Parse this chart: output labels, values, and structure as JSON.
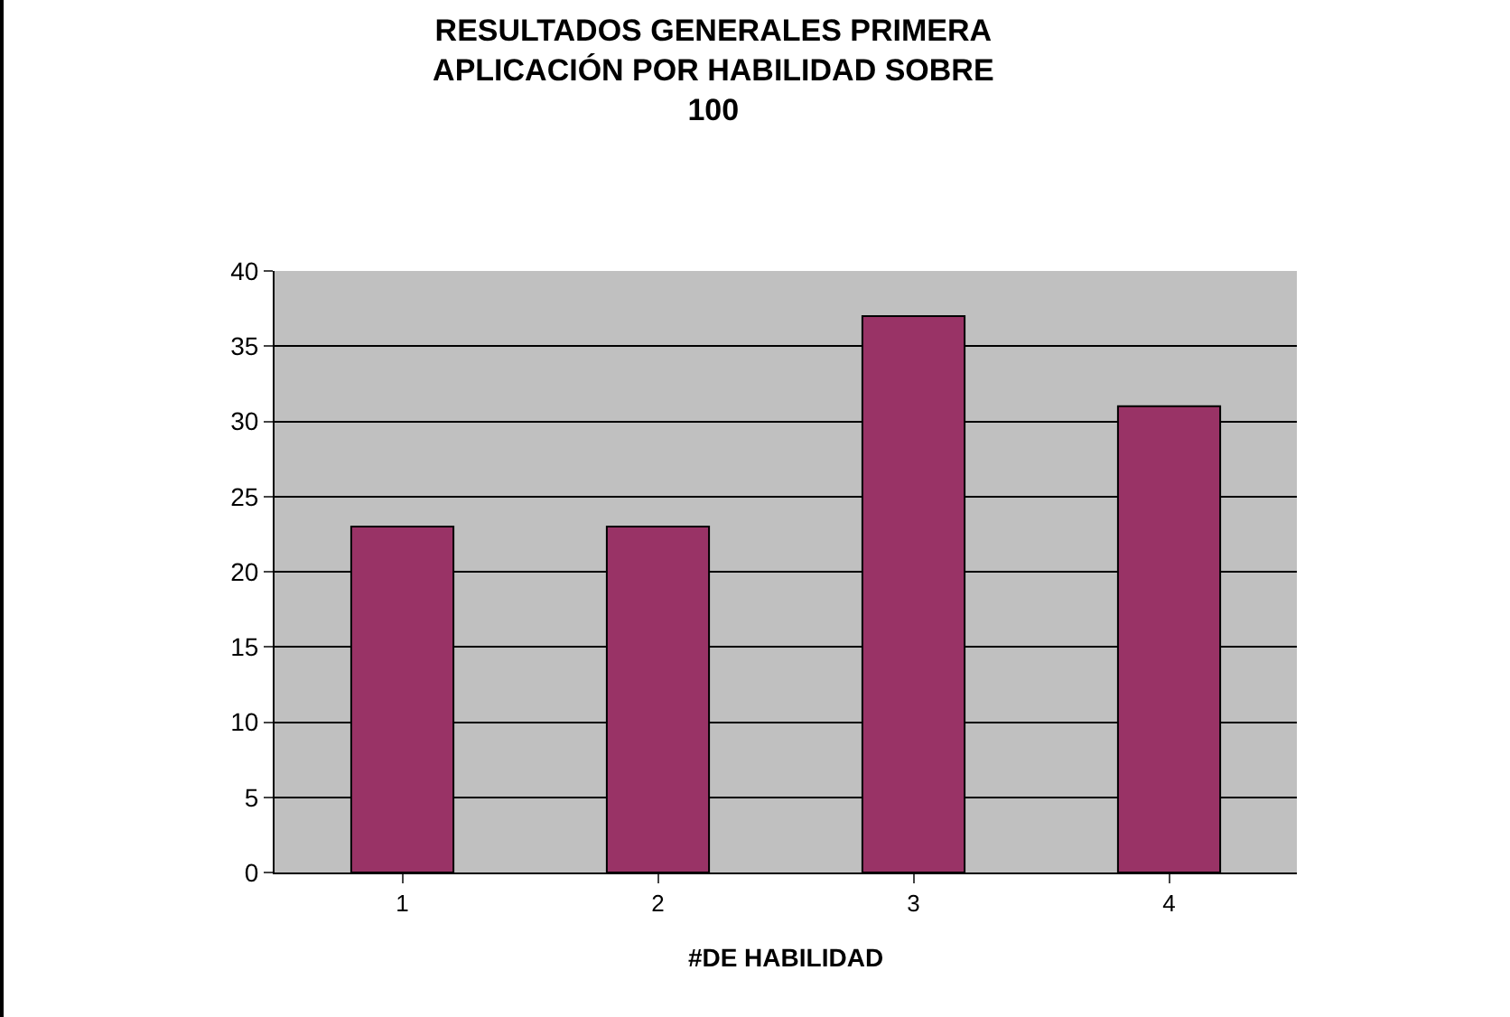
{
  "chart_data": {
    "type": "bar",
    "title": "RESULTADOS GENERALES PRIMERA\nAPLICACIÓN POR HABILIDAD SOBRE\n100",
    "xlabel": "#DE HABILIDAD",
    "categories": [
      "1",
      "2",
      "3",
      "4"
    ],
    "values": [
      23,
      23,
      37,
      31
    ],
    "color": "#993366",
    "ylim": [
      0,
      40
    ],
    "yticks": [
      0,
      5,
      10,
      15,
      20,
      25,
      30,
      35,
      40
    ],
    "grid": "y",
    "legend": false
  }
}
